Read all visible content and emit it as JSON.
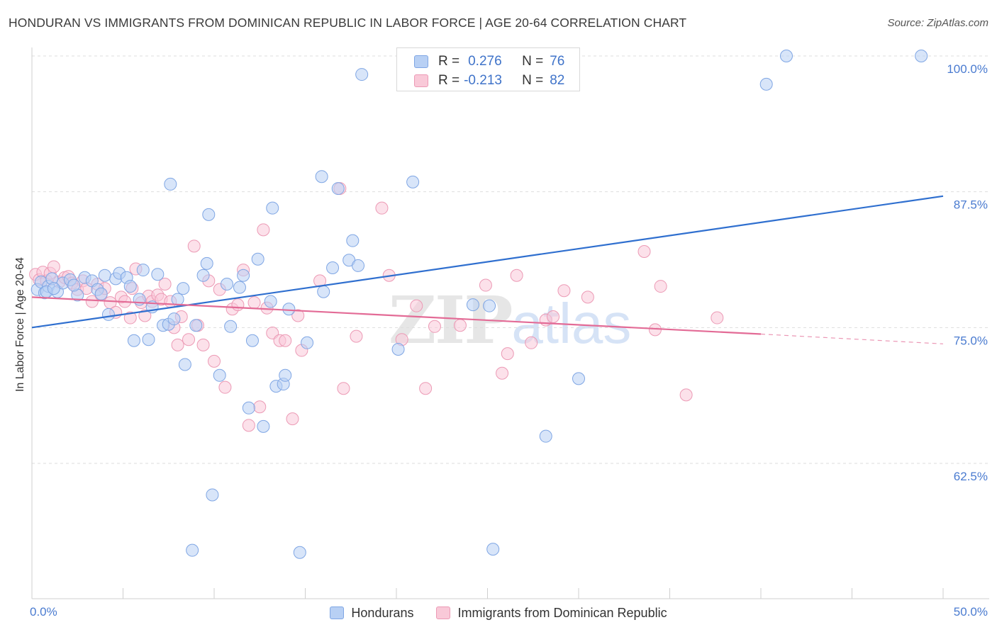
{
  "title": "HONDURAN VS IMMIGRANTS FROM DOMINICAN REPUBLIC IN LABOR FORCE | AGE 20-64 CORRELATION CHART",
  "source": "Source: ZipAtlas.com",
  "watermark": {
    "zip": "ZIP",
    "atlas": "atlas"
  },
  "legend": {
    "rows": [
      {
        "r_label": "R =",
        "r_value": "0.276",
        "n_label": "N =",
        "n_value": "76"
      },
      {
        "r_label": "R =",
        "r_value": "-0.213",
        "n_label": "N =",
        "n_value": "82"
      }
    ]
  },
  "colors": {
    "hondurans": "#7fa6e4",
    "hondurans_fill": "#b8d0f4",
    "hondurans_line": "#2f6fcf",
    "dominican": "#ec9ab5",
    "dominican_fill": "#f9c9d8",
    "dominican_line": "#e36b96",
    "tick_text": "#4a7bd0",
    "grid": "#dddddd"
  },
  "chart_data": {
    "type": "scatter",
    "title": "HONDURAN VS IMMIGRANTS FROM DOMINICAN REPUBLIC IN LABOR FORCE | AGE 20-64 CORRELATION CHART",
    "xlabel": "",
    "ylabel": "In Labor Force | Age 20-64",
    "xlim": [
      0,
      50
    ],
    "ylim": [
      50,
      101
    ],
    "x_tick_labels": [
      "0.0%",
      "50.0%"
    ],
    "y_ticks": [
      62.5,
      75.0,
      87.5,
      100.0
    ],
    "y_tick_labels": [
      "62.5%",
      "75.0%",
      "87.5%",
      "100.0%"
    ],
    "grid": true,
    "legend_position": "bottom",
    "series": [
      {
        "name": "Hondurans",
        "trend": {
          "x": [
            0,
            50
          ],
          "y": [
            75.0,
            87.1
          ]
        },
        "points": [
          [
            0.3,
            78.5
          ],
          [
            0.5,
            79.2
          ],
          [
            0.7,
            78.2
          ],
          [
            0.9,
            78.8
          ],
          [
            1.1,
            79.5
          ],
          [
            1.4,
            78.3
          ],
          [
            1.7,
            79.1
          ],
          [
            2.1,
            79.4
          ],
          [
            2.5,
            78.0
          ],
          [
            2.9,
            79.6
          ],
          [
            3.3,
            79.3
          ],
          [
            3.6,
            78.5
          ],
          [
            4.0,
            79.8
          ],
          [
            4.2,
            76.2
          ],
          [
            4.6,
            79.5
          ],
          [
            4.8,
            80.0
          ],
          [
            5.2,
            79.6
          ],
          [
            5.4,
            78.8
          ],
          [
            5.6,
            73.8
          ],
          [
            5.9,
            77.6
          ],
          [
            6.1,
            80.3
          ],
          [
            6.4,
            73.9
          ],
          [
            6.6,
            76.9
          ],
          [
            6.9,
            79.9
          ],
          [
            7.2,
            75.2
          ],
          [
            7.5,
            75.3
          ],
          [
            7.6,
            88.2
          ],
          [
            7.8,
            75.8
          ],
          [
            8.0,
            77.6
          ],
          [
            8.3,
            78.6
          ],
          [
            8.4,
            71.6
          ],
          [
            8.8,
            54.5
          ],
          [
            9.0,
            75.2
          ],
          [
            9.4,
            79.8
          ],
          [
            9.6,
            80.9
          ],
          [
            9.7,
            85.4
          ],
          [
            9.9,
            59.6
          ],
          [
            10.3,
            70.6
          ],
          [
            10.7,
            79.0
          ],
          [
            10.9,
            75.1
          ],
          [
            11.4,
            78.7
          ],
          [
            11.6,
            79.8
          ],
          [
            11.9,
            67.6
          ],
          [
            12.1,
            73.8
          ],
          [
            12.4,
            81.3
          ],
          [
            12.7,
            65.9
          ],
          [
            13.1,
            77.4
          ],
          [
            13.2,
            86.0
          ],
          [
            13.4,
            69.6
          ],
          [
            13.8,
            69.8
          ],
          [
            13.9,
            70.6
          ],
          [
            14.1,
            76.7
          ],
          [
            14.7,
            54.3
          ],
          [
            15.1,
            73.6
          ],
          [
            15.9,
            88.9
          ],
          [
            16.0,
            78.3
          ],
          [
            16.5,
            80.5
          ],
          [
            16.8,
            87.8
          ],
          [
            17.4,
            81.2
          ],
          [
            17.6,
            83.0
          ],
          [
            17.9,
            80.7
          ],
          [
            18.1,
            98.3
          ],
          [
            20.1,
            73.0
          ],
          [
            20.9,
            88.4
          ],
          [
            24.2,
            77.1
          ],
          [
            25.1,
            77.0
          ],
          [
            25.3,
            54.6
          ],
          [
            28.2,
            65.0
          ],
          [
            30.0,
            70.3
          ],
          [
            40.3,
            97.4
          ],
          [
            41.4,
            100.0
          ],
          [
            48.8,
            100.0
          ],
          [
            0.8,
            78.3
          ],
          [
            2.3,
            78.9
          ],
          [
            3.8,
            78.1
          ],
          [
            1.2,
            78.6
          ]
        ]
      },
      {
        "name": "Immigrants from Dominican Republic",
        "trend": {
          "x": [
            0,
            40
          ],
          "y": [
            77.8,
            74.4
          ]
        },
        "trend_dashed": {
          "x": [
            40,
            50
          ],
          "y": [
            74.4,
            73.5
          ]
        },
        "points": [
          [
            0.2,
            79.9
          ],
          [
            0.4,
            79.4
          ],
          [
            0.6,
            80.1
          ],
          [
            0.8,
            79.3
          ],
          [
            1.0,
            80.0
          ],
          [
            1.2,
            80.6
          ],
          [
            1.5,
            79.2
          ],
          [
            1.8,
            79.6
          ],
          [
            2.0,
            79.7
          ],
          [
            2.2,
            79.1
          ],
          [
            2.5,
            78.5
          ],
          [
            2.8,
            79.3
          ],
          [
            3.0,
            78.6
          ],
          [
            3.3,
            77.4
          ],
          [
            3.6,
            79.0
          ],
          [
            3.8,
            78.0
          ],
          [
            4.0,
            78.6
          ],
          [
            4.3,
            77.3
          ],
          [
            4.6,
            76.4
          ],
          [
            4.9,
            77.8
          ],
          [
            5.1,
            77.4
          ],
          [
            5.4,
            75.9
          ],
          [
            5.5,
            78.6
          ],
          [
            5.7,
            80.4
          ],
          [
            6.0,
            77.3
          ],
          [
            6.2,
            76.1
          ],
          [
            6.4,
            77.9
          ],
          [
            6.6,
            77.4
          ],
          [
            6.9,
            78.0
          ],
          [
            7.1,
            77.6
          ],
          [
            7.3,
            79.0
          ],
          [
            7.6,
            77.4
          ],
          [
            7.8,
            75.0
          ],
          [
            8.0,
            73.4
          ],
          [
            8.2,
            76.0
          ],
          [
            8.6,
            73.9
          ],
          [
            8.9,
            82.5
          ],
          [
            9.1,
            75.2
          ],
          [
            9.4,
            73.4
          ],
          [
            9.7,
            79.3
          ],
          [
            10.0,
            71.9
          ],
          [
            10.3,
            78.5
          ],
          [
            10.6,
            69.5
          ],
          [
            11.0,
            76.7
          ],
          [
            11.3,
            77.1
          ],
          [
            11.6,
            80.3
          ],
          [
            11.9,
            66.0
          ],
          [
            12.2,
            77.3
          ],
          [
            12.5,
            67.7
          ],
          [
            12.7,
            84.0
          ],
          [
            12.9,
            76.8
          ],
          [
            13.2,
            74.5
          ],
          [
            13.6,
            73.8
          ],
          [
            13.9,
            73.8
          ],
          [
            14.3,
            66.6
          ],
          [
            14.6,
            76.1
          ],
          [
            14.8,
            72.9
          ],
          [
            15.8,
            79.3
          ],
          [
            16.9,
            87.8
          ],
          [
            17.1,
            69.4
          ],
          [
            17.8,
            74.2
          ],
          [
            19.2,
            86.0
          ],
          [
            19.6,
            79.8
          ],
          [
            20.3,
            73.9
          ],
          [
            21.1,
            77.0
          ],
          [
            21.6,
            69.4
          ],
          [
            22.1,
            75.1
          ],
          [
            23.5,
            75.2
          ],
          [
            24.9,
            78.9
          ],
          [
            25.8,
            70.8
          ],
          [
            26.1,
            72.6
          ],
          [
            26.6,
            79.8
          ],
          [
            27.4,
            73.6
          ],
          [
            28.2,
            75.7
          ],
          [
            28.6,
            76.0
          ],
          [
            29.2,
            78.4
          ],
          [
            30.5,
            77.8
          ],
          [
            33.6,
            82.0
          ],
          [
            34.2,
            74.8
          ],
          [
            34.5,
            78.8
          ],
          [
            35.9,
            68.8
          ],
          [
            37.6,
            75.9
          ]
        ]
      }
    ]
  },
  "bottom_legend": [
    "Hondurans",
    "Immigrants from Dominican Republic"
  ]
}
